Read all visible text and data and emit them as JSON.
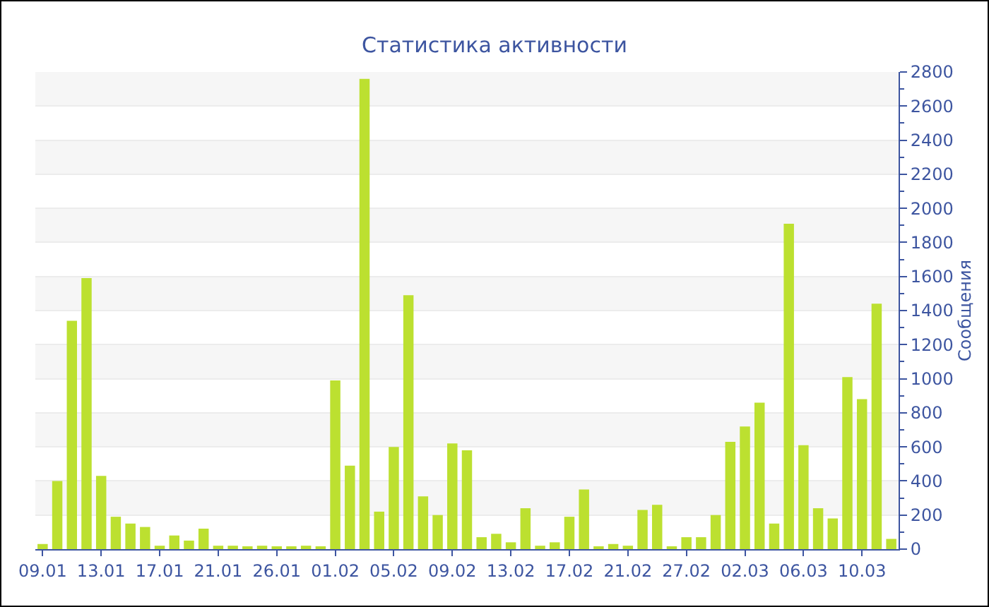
{
  "chart_data": {
    "type": "bar",
    "title": "Статистика активности",
    "ylabel": "Сообщения",
    "categories": [
      "09.01",
      null,
      null,
      null,
      "13.01",
      null,
      null,
      null,
      "17.01",
      null,
      null,
      null,
      "21.01",
      null,
      null,
      null,
      "26.01",
      null,
      null,
      null,
      "01.02",
      null,
      null,
      null,
      "05.02",
      null,
      null,
      null,
      "09.02",
      null,
      null,
      null,
      "13.02",
      null,
      null,
      null,
      "17.02",
      null,
      null,
      null,
      "21.02",
      null,
      null,
      null,
      "27.02",
      null,
      null,
      null,
      "02.03",
      null,
      null,
      null,
      "06.03",
      null,
      null,
      null,
      "10.03",
      null,
      null
    ],
    "values": [
      30,
      400,
      1340,
      1590,
      430,
      190,
      150,
      130,
      20,
      80,
      50,
      120,
      20,
      20,
      10,
      20,
      10,
      10,
      20,
      10,
      990,
      490,
      2760,
      220,
      600,
      1490,
      310,
      200,
      620,
      580,
      70,
      90,
      40,
      240,
      20,
      40,
      190,
      350,
      10,
      30,
      20,
      230,
      260,
      10,
      70,
      70,
      200,
      630,
      720,
      860,
      150,
      1910,
      610,
      240,
      180,
      1010,
      880,
      1440,
      60
    ],
    "color": "#bce030",
    "ylim": [
      0,
      2800
    ],
    "yticks": [
      0,
      200,
      400,
      600,
      800,
      1000,
      1200,
      1400,
      1600,
      1800,
      2000,
      2200,
      2400,
      2600,
      2800
    ],
    "grid": "y"
  }
}
